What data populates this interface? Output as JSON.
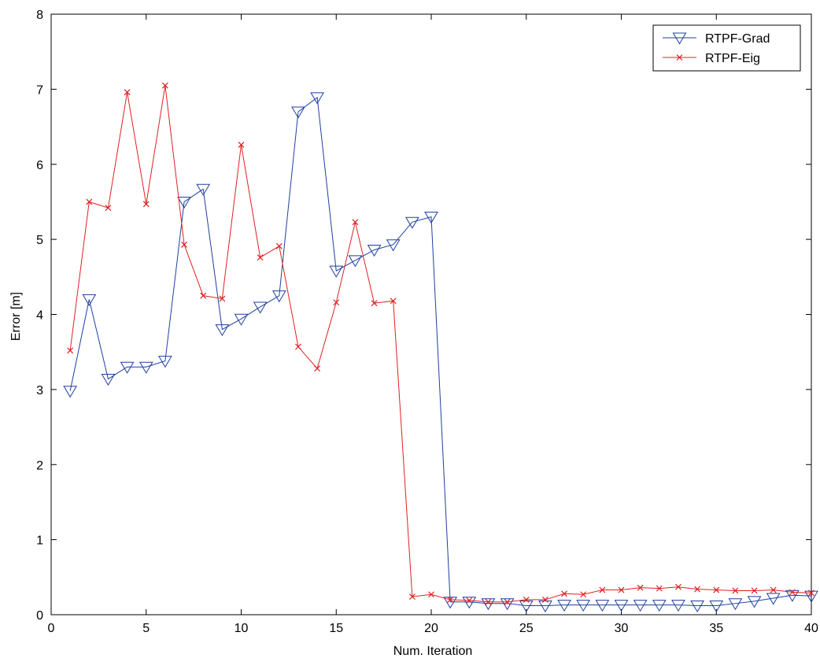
{
  "chart_data": {
    "type": "line",
    "title": "",
    "xlabel": "Num. Iteration",
    "ylabel": "Error [m]",
    "xlim": [
      0,
      40
    ],
    "ylim": [
      0,
      8
    ],
    "xticks": [
      "0",
      "5",
      "10",
      "15",
      "20",
      "25",
      "30",
      "35",
      "40"
    ],
    "yticks": [
      "0",
      "1",
      "2",
      "3",
      "4",
      "5",
      "6",
      "7",
      "8"
    ],
    "grid": false,
    "legend_position": "top-right",
    "x": [
      1,
      2,
      3,
      4,
      5,
      6,
      7,
      8,
      9,
      10,
      11,
      12,
      13,
      14,
      15,
      16,
      17,
      18,
      19,
      20,
      21,
      22,
      23,
      24,
      25,
      26,
      27,
      28,
      29,
      30,
      31,
      32,
      33,
      34,
      35,
      36,
      37,
      38,
      39,
      40
    ],
    "series": [
      {
        "name": "RTPF-Grad",
        "color": "#1f3f9f",
        "marker": "triangle-down",
        "values": [
          2.98,
          4.2,
          3.14,
          3.3,
          3.3,
          3.38,
          5.5,
          5.67,
          3.8,
          3.94,
          4.1,
          4.25,
          6.7,
          6.89,
          4.58,
          4.72,
          4.86,
          4.93,
          5.23,
          5.3,
          0.17,
          0.17,
          0.15,
          0.15,
          0.12,
          0.12,
          0.13,
          0.13,
          0.13,
          0.13,
          0.13,
          0.13,
          0.13,
          0.12,
          0.12,
          0.15,
          0.18,
          0.22,
          0.26,
          0.25
        ]
      },
      {
        "name": "RTPF-Eig",
        "color": "#e02020",
        "marker": "x",
        "values": [
          3.52,
          5.5,
          5.42,
          6.96,
          5.47,
          7.05,
          4.93,
          4.25,
          4.21,
          6.26,
          4.76,
          4.91,
          3.57,
          3.28,
          4.16,
          5.23,
          4.15,
          4.18,
          0.24,
          0.27,
          0.2,
          0.19,
          0.17,
          0.17,
          0.2,
          0.2,
          0.28,
          0.27,
          0.33,
          0.33,
          0.36,
          0.35,
          0.37,
          0.34,
          0.33,
          0.32,
          0.32,
          0.33,
          0.3,
          0.29
        ]
      }
    ]
  }
}
